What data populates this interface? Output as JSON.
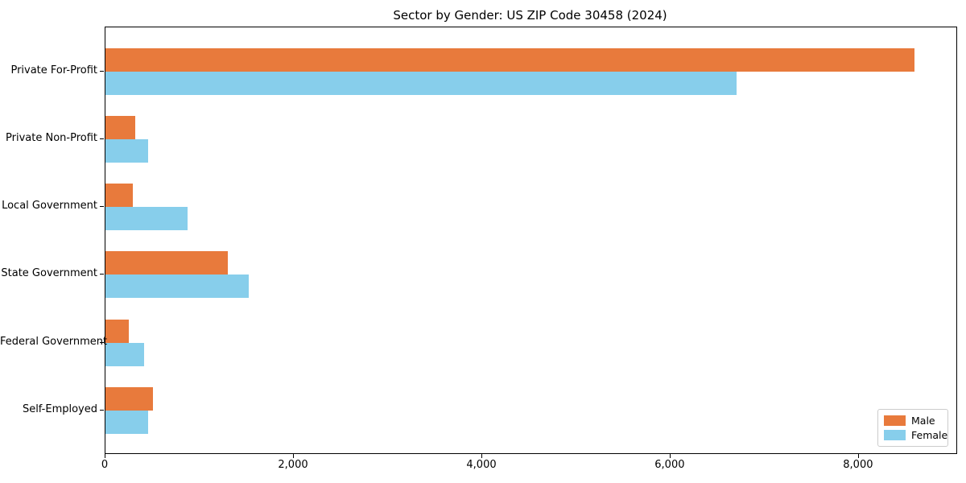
{
  "chart_data": {
    "type": "bar",
    "orientation": "horizontal",
    "title": "Sector by Gender: US ZIP Code 30458 (2024)",
    "categories": [
      "Private For-Profit",
      "Private Non-Profit",
      "Local Government",
      "State Government",
      "Federal Government",
      "Self-Employed"
    ],
    "series": [
      {
        "name": "Male",
        "color": "#e87a3c",
        "values": [
          8590,
          315,
          290,
          1295,
          245,
          505
        ]
      },
      {
        "name": "Female",
        "color": "#87ceeb",
        "values": [
          6700,
          455,
          875,
          1525,
          410,
          455
        ]
      }
    ],
    "xlabel": "",
    "ylabel": "",
    "xlim": [
      0,
      9035
    ],
    "xticks": [
      0,
      2000,
      4000,
      6000,
      8000
    ],
    "xtick_labels": [
      "0",
      "2,000",
      "4,000",
      "6,000",
      "8,000"
    ],
    "legend": {
      "position": "lower-right",
      "entries": [
        "Male",
        "Female"
      ]
    },
    "grid": false
  }
}
